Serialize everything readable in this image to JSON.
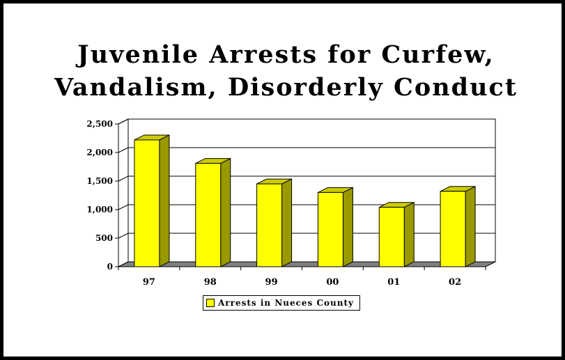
{
  "chart_data": {
    "type": "bar",
    "title_lines": [
      "Juvenile Arrests for Curfew,",
      "Vandalism, Disorderly Conduct"
    ],
    "categories": [
      "97",
      "98",
      "99",
      "00",
      "01",
      "02"
    ],
    "series": [
      {
        "name": "Arrests in Nueces County",
        "values": [
          2220,
          1810,
          1450,
          1300,
          1040,
          1320
        ]
      }
    ],
    "ylim": [
      0,
      2500
    ],
    "yticks": [
      0,
      500,
      1000,
      1500,
      2000,
      2500
    ],
    "ytick_labels": [
      "0",
      "500",
      "1,000",
      "1,500",
      "2,000",
      "2,500"
    ],
    "grid": true,
    "three_d": true,
    "legend_position": "bottom",
    "colors": {
      "bar_face": "#ffff00",
      "bar_side": "#999900",
      "bar_top": "#cccc00",
      "floor": "#808080"
    }
  }
}
